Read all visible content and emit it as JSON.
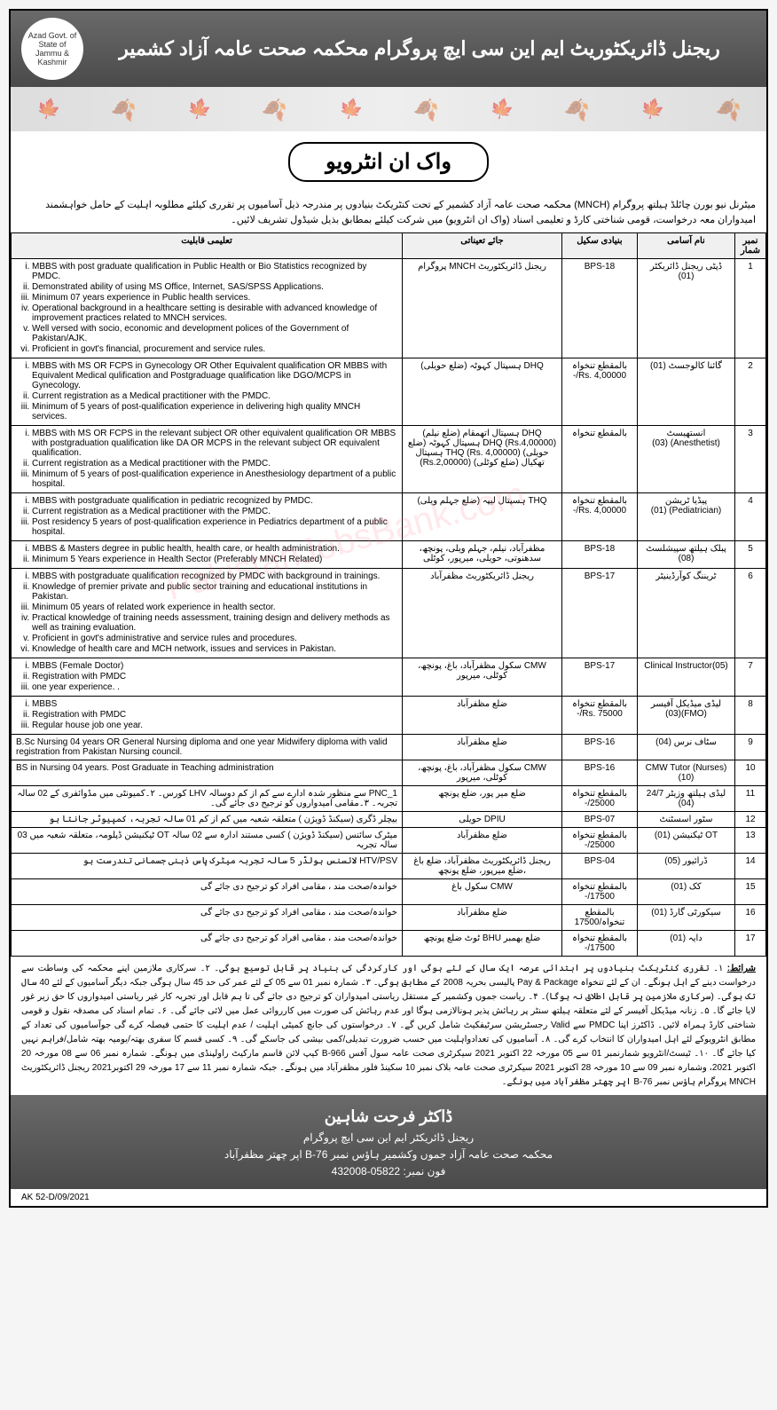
{
  "header": {
    "title_urdu": "ریجنل ڈائریکٹوریٹ ایم این سی ایچ پروگرام محکمہ صحت عامہ آزاد کشمیر",
    "logo_text": "Azad Govt. of State of Jammu & Kashmir"
  },
  "subtitle": "واک ان انٹرویو",
  "intro": "میٹرنل نیو بورن چائلڈ ہیلتھ پروگرام (MNCH) محکمہ صحت عامہ آزاد کشمیر کے تحت کنٹریکٹ بنیادوں پر مندرجہ ذیل آسامیوں پر تقرری کیلئے مطلوبہ اہلیت کے حامل خواہشمند امیدواران معہ درخواست، قومی شناختی کارڈ و تعلیمی اسناد (واک ان انٹرویو) میں شرکت کیلئے بمطابق بذیل شیڈول تشریف لائیں۔",
  "table": {
    "headers": {
      "sn": "نمبر شمار",
      "name": "نام آسامی",
      "scale": "بنیادی سکیل",
      "location": "جائے تعیناتی",
      "qualification": "تعلیمی قابلیت"
    },
    "rows": [
      {
        "sn": "1",
        "name": "ڈپٹی ریجنل ڈائریکٹر (01)",
        "scale": "BPS-18",
        "location": "ریجنل ڈائریکٹوریٹ MNCH پروگرام",
        "qual_type": "list",
        "qual": [
          "MBBS with post graduate qualification in Public Health or Bio Statistics recognized by PMDC.",
          "Demonstrated ability of using MS Office, Internet, SAS/SPSS Applications.",
          "Minimum 07 years experience in Public health services.",
          "Operational background in a healthcare setting is desirable with advanced knowledge of improvement practices related to MNCH services.",
          "Well versed with socio, economic and development polices of the Government of Pakistan/AJK.",
          "Proficient in govt's financial, procurement and service rules."
        ]
      },
      {
        "sn": "2",
        "name": "گائنا کالوجسٹ (01)",
        "scale": "بالمقطع تنخواہ Rs. 4,00000/-",
        "location": "DHQ ہسپتال کہوٹہ (ضلع حویلی)",
        "qual_type": "list",
        "qual": [
          "MBBS with MS OR FCPS in Gynecology OR Other Equivalent qualification OR MBBS with Equivalent Medical qulification and Postgraduage qualification like DGO/MCPS in Gynecology.",
          "Current registration as a Medical practitioner with the PMDC.",
          "Minimum of 5 years of post-qualification experience in delivering high quality MNCH services."
        ]
      },
      {
        "sn": "3",
        "name": "انستھیسٹ (Anesthetist) (03)",
        "scale": "بالمقطع تنخواہ",
        "location": "DHQ ہسپتال اتھمقام (ضلع نیلم) (Rs.4,00000) DHQ ہسپتال کہوٹہ (ضلع حویلی) (Rs. 4,00000) THQ ہسپتال تھکیال (ضلع کوٹلی) (Rs.2,00000)",
        "qual_type": "list",
        "qual": [
          "MBBS with MS OR FCPS in the relevant subject OR other equivalent qualification OR MBBS with postgraduation qualification like DA OR MCPS in the relevant subject OR equivalent qualification.",
          "Current registration as a Medical practitioner with the PMDC.",
          "Minimum of 5 years of post-qualification experience in Anesthesiology department of a public hospital."
        ]
      },
      {
        "sn": "4",
        "name": "پیڈیا ٹریشن (Pediatrician) (01)",
        "scale": "بالمقطع تنخواہ Rs. 4,00000/-",
        "location": "THQ ہسپتال لیپہ (ضلع جہلم ویلی)",
        "qual_type": "list",
        "qual": [
          "MBBS with postgraduate qualification in pediatric recognized by PMDC.",
          "Current registration as a Medical practitioner with the PMDC.",
          "Post residency 5 years of post-qualification experience in Pediatrics department of a public hospital."
        ]
      },
      {
        "sn": "5",
        "name": "پبلک ہیلتھ سپیشلسٹ (08)",
        "scale": "BPS-18",
        "location": "مظفرآباد، نیلم، جہلم ویلی، پونچھ، سدھنوتی، حویلی، میرپور، کوٹلی",
        "qual_type": "list",
        "qual": [
          "MBBS & Masters degree in public health, health care, or health administration.",
          "Minimum 5 Years experience in Health Sector (Preferably MNCH Related)"
        ]
      },
      {
        "sn": "6",
        "name": "ٹریننگ کوآرڈینیٹر",
        "scale": "BPS-17",
        "location": "ریجنل ڈائریکٹوریٹ مظفرآباد",
        "qual_type": "list",
        "qual": [
          "MBBS with postgraduate qualification recognized by PMDC with background in trainings.",
          "Knowledge of premier private and public sector training and educational institutions in Pakistan.",
          "Minimum 05 years of related work experience in health sector.",
          "Practical knowledge of training needs assessment, training design and delivery methods as well as training evaluation.",
          "Proficient in govt's administrative and service rules and procedures.",
          "Knowledge of health care and MCH network, issues and services in Pakistan."
        ]
      },
      {
        "sn": "7",
        "name": "Clinical Instructor(05)",
        "scale": "BPS-17",
        "location": "CMW سکول مظفرآباد، باغ، پونچھ، کوٹلی، میرپور",
        "qual_type": "list",
        "qual": [
          "MBBS (Female Doctor)",
          "Registration with PMDC",
          "one year experience. ."
        ]
      },
      {
        "sn": "8",
        "name": "لیڈی میڈیکل آفیسر (FMO)(03)",
        "scale": "بالمقطع تنخواہ Rs. 75000/-",
        "location": "ضلع مظفرآباد",
        "qual_type": "list",
        "qual": [
          "MBBS",
          "Registration with PMDC",
          "Regular house job one year."
        ]
      },
      {
        "sn": "9",
        "name": "سٹاف نرس (04)",
        "scale": "BPS-16",
        "location": "ضلع مظفرآباد",
        "qual_type": "text",
        "qual_text": "B.Sc Nursing 04 years OR General Nursing diploma and one year Midwifery diploma with valid registration from Pakistan Nursing council."
      },
      {
        "sn": "10",
        "name": "CMW Tutor (Nurses)(10)",
        "scale": "BPS-16",
        "location": "CMW سکول مظفرآباد، باغ، پونچھ، کوٹلی، میرپور",
        "qual_type": "text",
        "qual_text": "BS in Nursing 04 years. Post Graduate in Teaching administration"
      },
      {
        "sn": "11",
        "name": "لیڈی ہیلتھ وزیٹر 24/7 (04)",
        "scale": "بالمقطع تنخواہ 25000/-",
        "location": "ضلع میر پور، ضلع پونچھ",
        "qual_type": "rtl",
        "qual_text": "PNC_1 سے منظور شدہ ادارے سے کم از کم دوسالہ  LHV کورس۔  ۲۔کمیونٹی میں مڈوائفری کے 02 سالہ تجربہ۔ ۳۔مقامی امیدواروں کو ترجیح دی جائے گی۔"
      },
      {
        "sn": "12",
        "name": "سٹور اسسٹنٹ",
        "scale": "BPS-07",
        "location": "DPIU حویلی",
        "qual_type": "rtl",
        "qual_text": "بیچلر ڈگری (سیکنڈ ڈویژن ) متعلقہ شعبہ میں کم از کم  01  سالہ تجربہ، کمپیوٹر جانتا ہو"
      },
      {
        "sn": "13",
        "name": "OT ٹیکنیشن (01)",
        "scale": "بالمقطع تنخواہ 25000/-",
        "location": "ضلع مظفرآباد",
        "qual_type": "rtl",
        "qual_text": "میٹرک سائنس (سیکنڈ ڈویژن )  کسی مستند ادارہ سے  02  سالہ OT ٹیکنیشن ڈپلومہ، متعلقہ شعبہ میں 03 سالہ تجربہ"
      },
      {
        "sn": "14",
        "name": "ڈرائیور (05)",
        "scale": "BPS-04",
        "location": "ریجنل ڈائریکٹوریٹ مظفرآباد، ضلع باغ ،ضلع میرپور، ضلع پونچھ",
        "qual_type": "rtl",
        "qual_text": "HTV/PSV لائسنس ہولڈر  5 سالہ تجربہ میٹرک پاس ذہنی جسمانی تندرست ہو"
      },
      {
        "sn": "15",
        "name": "کک (01)",
        "scale": "بالمقطع تنخواہ 17500/-",
        "location": "CMW سکول باغ",
        "qual_type": "rtl",
        "qual_text": "خواندہ/صحت مند ، مقامی افراد کو ترجیح دی جائے گی"
      },
      {
        "sn": "16",
        "name": "سیکورٹی گارڈ (01)",
        "scale": "بالمقطع تنخواہ/17500",
        "location": "ضلع مظفرآباد",
        "qual_type": "rtl",
        "qual_text": "خواندہ/صحت مند ، مقامی افراد کو ترجیح دی جائے گی"
      },
      {
        "sn": "17",
        "name": "دایہ (01)",
        "scale": "بالمقطع تنخواہ 17500/-",
        "location": "ضلع بھمبر BHU ٹوٹ ضلع پونچھ",
        "qual_type": "rtl",
        "qual_text": "خواندہ/صحت مند ، مقامی افراد کو ترجیح دی جائے گی"
      }
    ]
  },
  "conditions_label": "شرائط:",
  "conditions_text": "۱۔ تقرری کنٹریکٹ بنیادوں پر ابتدائی عرصہ ایک سال کے لئے ہوگی اور کارکردگی کی بنیاد پر قابل توسیع ہوگی۔ ۲۔ سرکاری ملازمین اپنے محکمہ کی وساطت سے درخواست دینے کے اہل ہونگے۔ ان کے لئے تنخواہ Pay & Package پالیسی بحریہ 2008 کے مطابق ہوگی۔ ۳۔ شمارہ نمبر 01 سے 05 کے لئے عمر کی حد 45 سال ہوگی جبکہ دیگر آسامیوں کے لئے 40 سال تک ہوگی۔ (سرکاری ملازمین پر قابل اطلاق نہ ہوگا)۔ ۴۔ ریاست جموں وکشمیر کے مستقل ریاستی امیدواران کو ترجیح دی جائے گی تا ہم قابل اور تجربہ کار غیر ریاستی امیدواروں کا حق زیر غور لایا جائے گا۔ ۵۔ زنانہ میڈیکل آفیسر کے لئے متعلقہ ہیلتھ سنٹر پر رہائش پذیر ہونالازمی ہوگا اور عدم رہائش کی صورت میں کارروائی عمل میں لائی جائے گی۔    ۶۔ تمام اسناد کی مصدقہ نقول و قومی شناختی کارڈ ہمراہ لائیں۔ ڈاکٹرز اپنا PMDC سے Valid رجسٹریشن سرٹیفکیٹ شامل کریں گے۔ ۷۔ درخواستوں کی جانچ کمیٹی اہلیت / عدم اہلیت کا حتمی فیصلہ کرے گی جوآسامیوں کی تعداد کے مطابق انٹرویوکے لئے اہل امیدواران کا انتخاب کرے گی۔ ۸۔ آسامیوں کی تعدادواہلیت میں حسب ضرورت تبدیلی/کمی بیشی کی جاسکے گی۔ ۹۔ کسی قسم کا سفری بھتہ/یومیہ بھتہ شامل/فراہم نہیں کیا جائے گا۔ ۱۰۔ ٹیسٹ/انٹرویو شمارنمبر 01 سے 05 مورخہ 22 اکتوبر 2021 سیکرٹری صحت عامہ سول آفس 966-B کیپ لائن قاسم مارکیٹ راولپنڈی میں ہونگے۔ شمارہ نمبر 06 سے 08 مورخہ 20 اکتوبر 2021، وشمارہ نمبر 09 سے 10 مورخہ 28 اکتوبر 2021 سیکرٹری صحت عامہ  بلاک نمبر 10 سکینڈ فلور مظفرآباد میں ہونگے۔ جبکہ شمارہ نمبر 11 سے 17 مورخہ 29 اکتوبر2021 ریجنل ڈائریکٹوریٹ MNCH پروگرام ہاؤس نمبر B-76 اپر چھتر مظفرآباد میں ہونگے۔",
  "footer": {
    "name": "ڈاکٹر فرحت شاہین",
    "designation": "ریجنل ڈائریکٹر ایم این سی ایچ پروگرام",
    "address": "محکمہ صحت عامہ آزاد جموں وکشمیر  ہاؤس نمبر B-76 اپر چھتر مظفرآباد",
    "phone": "فون نمبر: 05822-432008"
  },
  "ref": "AK 52-D/09/2021"
}
